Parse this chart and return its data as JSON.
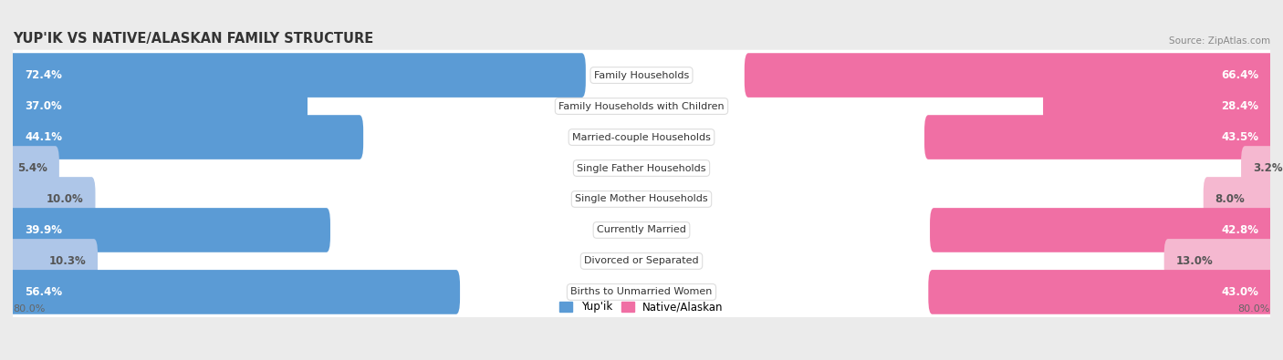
{
  "title": "YUP'IK VS NATIVE/ALASKAN FAMILY STRUCTURE",
  "source": "Source: ZipAtlas.com",
  "categories": [
    "Family Households",
    "Family Households with Children",
    "Married-couple Households",
    "Single Father Households",
    "Single Mother Households",
    "Currently Married",
    "Divorced or Separated",
    "Births to Unmarried Women"
  ],
  "yupik_values": [
    72.4,
    37.0,
    44.1,
    5.4,
    10.0,
    39.9,
    10.3,
    56.4
  ],
  "native_values": [
    66.4,
    28.4,
    43.5,
    3.2,
    8.0,
    42.8,
    13.0,
    43.0
  ],
  "yupik_color_strong": "#5b9bd5",
  "yupik_color_light": "#aec6e8",
  "native_color_strong": "#f06fa4",
  "native_color_light": "#f5b8d0",
  "bg_color": "#ebebeb",
  "row_bg": "#ffffff",
  "row_shadow": "#d8d8d8",
  "x_max": 80.0,
  "axis_label_left": "80.0%",
  "axis_label_right": "80.0%",
  "strong_threshold": 20.0,
  "label_fontsize": 8.5,
  "cat_fontsize": 8.0,
  "title_fontsize": 10.5
}
